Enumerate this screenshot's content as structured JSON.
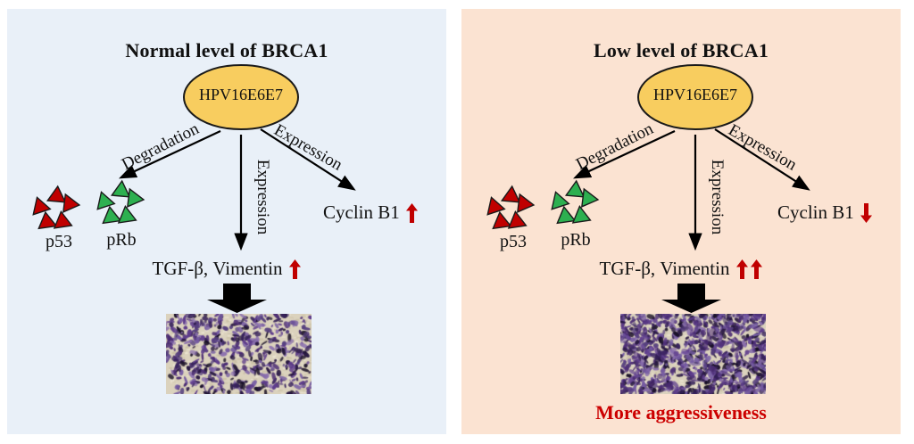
{
  "figure": {
    "description": "Two-panel schematic comparing HPV16E6E7 effects under normal vs low BRCA1 levels"
  },
  "colors": {
    "left_panel_bg": "#e9f0f8",
    "right_panel_bg": "#fbe3d2",
    "ellipse_fill": "#f8cd5f",
    "ellipse_stroke": "#1a1a1a",
    "triangle_red": "#c00000",
    "triangle_green": "#2db050",
    "trend_red": "#c00000",
    "arrow_black": "#000000",
    "footer_red": "#cc0000"
  },
  "panels": [
    {
      "title": "Normal level of BRCA1",
      "ellipse_label": "HPV16E6E7",
      "left_arrow_label": "Degradation",
      "middle_arrow_label": "Expression",
      "right_arrow_label": "Expression",
      "red_cluster_label": "p53",
      "green_cluster_label": "pRb",
      "cyclin_label": "Cyclin B1",
      "cyclin_trend": "up",
      "tgf_label": "TGF-β, Vimentin",
      "tgf_trend": "up",
      "tgf_arrow_count": 1,
      "micrograph_density": "moderate",
      "footer_label": ""
    },
    {
      "title": "Low level of BRCA1",
      "ellipse_label": "HPV16E6E7",
      "left_arrow_label": "Degradation",
      "middle_arrow_label": "Expression",
      "right_arrow_label": "Expression",
      "red_cluster_label": "p53",
      "green_cluster_label": "pRb",
      "cyclin_label": "Cyclin B1",
      "cyclin_trend": "down",
      "tgf_label": "TGF-β, Vimentin",
      "tgf_trend": "up-up",
      "tgf_arrow_count": 2,
      "micrograph_density": "high",
      "footer_label": "More aggressiveness"
    }
  ]
}
